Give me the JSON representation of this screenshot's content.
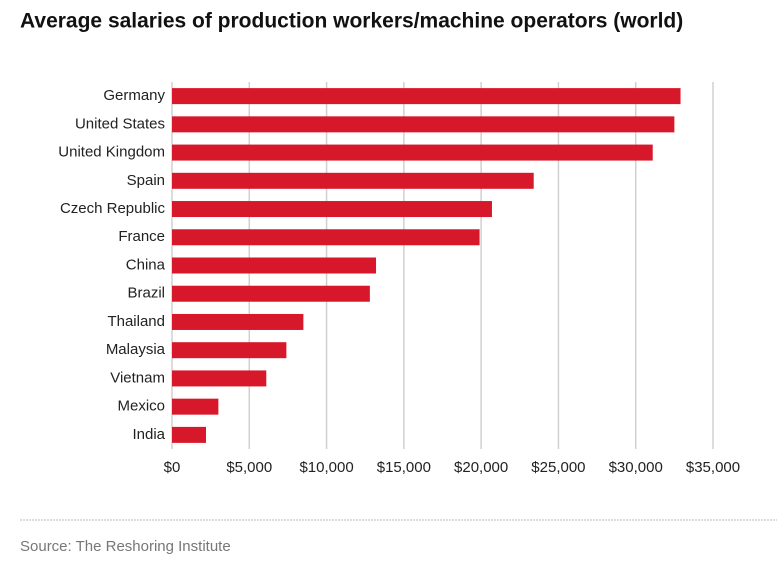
{
  "chart_data": {
    "type": "bar",
    "orientation": "horizontal",
    "title": "Average salaries of production workers/machine operators (world)",
    "source": "Source: The Reshoring Institute",
    "categories": [
      "Germany",
      "United States",
      "United Kingdom",
      "Spain",
      "Czech Republic",
      "France",
      "China",
      "Brazil",
      "Thailand",
      "Malaysia",
      "Vietnam",
      "Mexico",
      "India"
    ],
    "values": [
      32900,
      32500,
      31100,
      23400,
      20700,
      19900,
      13200,
      12800,
      8500,
      7400,
      6100,
      3000,
      2200
    ],
    "color": "#d7182a",
    "xlim": [
      0,
      35000
    ],
    "xticks": [
      {
        "value": 0,
        "label": "$0"
      },
      {
        "value": 5000,
        "label": "$5,000"
      },
      {
        "value": 10000,
        "label": "$10,000"
      },
      {
        "value": 15000,
        "label": "$15,000"
      },
      {
        "value": 20000,
        "label": "$20,000"
      },
      {
        "value": 25000,
        "label": "$25,000"
      },
      {
        "value": 30000,
        "label": "$30,000"
      },
      {
        "value": 35000,
        "label": "$35,000"
      }
    ],
    "grid": true
  }
}
